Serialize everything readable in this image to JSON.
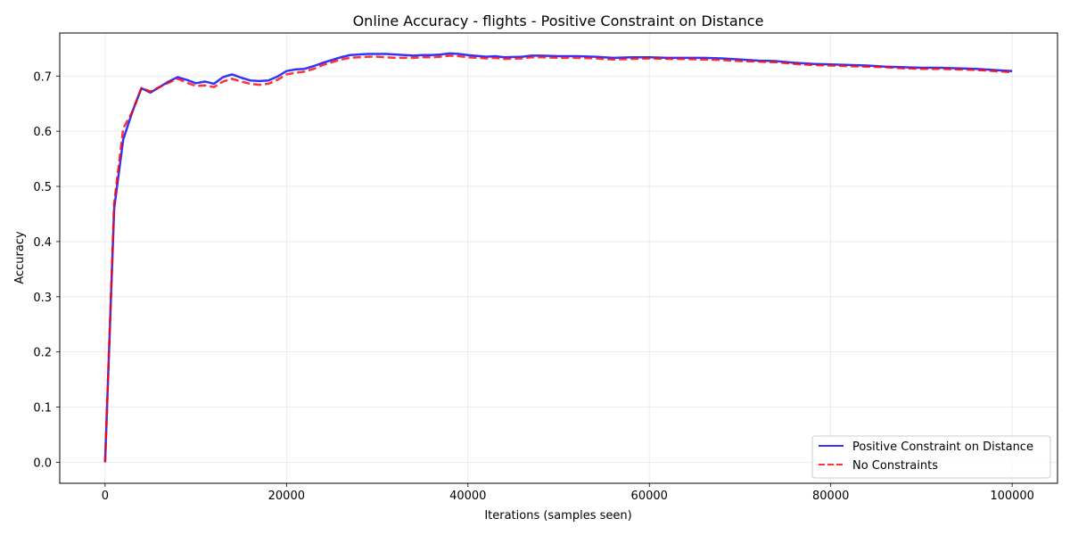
{
  "chart_data": {
    "type": "line",
    "title": "Online Accuracy - flights - Positive Constraint on Distance",
    "xlabel": "Iterations (samples seen)",
    "ylabel": "Accuracy",
    "xlim": [
      -5000,
      105000
    ],
    "ylim": [
      -0.038,
      0.778
    ],
    "x_ticks": [
      0,
      20000,
      40000,
      60000,
      80000,
      100000
    ],
    "x_tick_labels": [
      "0",
      "20000",
      "40000",
      "60000",
      "80000",
      "100000"
    ],
    "y_ticks": [
      0.0,
      0.1,
      0.2,
      0.3,
      0.4,
      0.5,
      0.6,
      0.7
    ],
    "y_tick_labels": [
      "0.0",
      "0.1",
      "0.2",
      "0.3",
      "0.4",
      "0.5",
      "0.6",
      "0.7"
    ],
    "grid": true,
    "legend_position": "bottom-right",
    "series": [
      {
        "name": "Positive Constraint on Distance",
        "color": "#0000ff",
        "style": "solid",
        "points": [
          [
            0,
            0.0
          ],
          [
            1000,
            0.46
          ],
          [
            2000,
            0.585
          ],
          [
            3000,
            0.635
          ],
          [
            4000,
            0.678
          ],
          [
            5000,
            0.67
          ],
          [
            6000,
            0.68
          ],
          [
            7000,
            0.69
          ],
          [
            8000,
            0.698
          ],
          [
            9000,
            0.693
          ],
          [
            10000,
            0.687
          ],
          [
            11000,
            0.69
          ],
          [
            12000,
            0.686
          ],
          [
            13000,
            0.698
          ],
          [
            14000,
            0.703
          ],
          [
            15000,
            0.697
          ],
          [
            16000,
            0.692
          ],
          [
            17000,
            0.691
          ],
          [
            18000,
            0.692
          ],
          [
            19000,
            0.699
          ],
          [
            20000,
            0.709
          ],
          [
            21000,
            0.712
          ],
          [
            22000,
            0.713
          ],
          [
            23000,
            0.718
          ],
          [
            24000,
            0.724
          ],
          [
            25000,
            0.729
          ],
          [
            26000,
            0.734
          ],
          [
            27000,
            0.738
          ],
          [
            28000,
            0.739
          ],
          [
            29000,
            0.74
          ],
          [
            30000,
            0.74
          ],
          [
            31000,
            0.74
          ],
          [
            32000,
            0.739
          ],
          [
            33000,
            0.738
          ],
          [
            34000,
            0.737
          ],
          [
            35000,
            0.738
          ],
          [
            36000,
            0.738
          ],
          [
            37000,
            0.739
          ],
          [
            38000,
            0.741
          ],
          [
            39000,
            0.74
          ],
          [
            40000,
            0.738
          ],
          [
            42000,
            0.735
          ],
          [
            43000,
            0.736
          ],
          [
            44000,
            0.734
          ],
          [
            46000,
            0.735
          ],
          [
            47000,
            0.737
          ],
          [
            48000,
            0.737
          ],
          [
            50000,
            0.736
          ],
          [
            52000,
            0.736
          ],
          [
            54000,
            0.735
          ],
          [
            56000,
            0.733
          ],
          [
            58000,
            0.734
          ],
          [
            60000,
            0.734
          ],
          [
            62000,
            0.733
          ],
          [
            64000,
            0.733
          ],
          [
            66000,
            0.733
          ],
          [
            68000,
            0.732
          ],
          [
            70000,
            0.73
          ],
          [
            72000,
            0.728
          ],
          [
            74000,
            0.727
          ],
          [
            76000,
            0.724
          ],
          [
            78000,
            0.722
          ],
          [
            80000,
            0.721
          ],
          [
            82000,
            0.72
          ],
          [
            84000,
            0.719
          ],
          [
            86000,
            0.717
          ],
          [
            88000,
            0.716
          ],
          [
            90000,
            0.715
          ],
          [
            92000,
            0.715
          ],
          [
            94000,
            0.714
          ],
          [
            96000,
            0.713
          ],
          [
            98000,
            0.711
          ],
          [
            100000,
            0.709
          ]
        ]
      },
      {
        "name": "No Constraints",
        "color": "#ff0000",
        "style": "dashed",
        "points": [
          [
            0,
            0.0
          ],
          [
            1000,
            0.47
          ],
          [
            2000,
            0.605
          ],
          [
            3000,
            0.635
          ],
          [
            4000,
            0.678
          ],
          [
            5000,
            0.672
          ],
          [
            6000,
            0.68
          ],
          [
            7000,
            0.688
          ],
          [
            8000,
            0.695
          ],
          [
            9000,
            0.688
          ],
          [
            10000,
            0.682
          ],
          [
            11000,
            0.683
          ],
          [
            12000,
            0.68
          ],
          [
            13000,
            0.69
          ],
          [
            14000,
            0.695
          ],
          [
            15000,
            0.69
          ],
          [
            16000,
            0.686
          ],
          [
            17000,
            0.684
          ],
          [
            18000,
            0.686
          ],
          [
            19000,
            0.693
          ],
          [
            20000,
            0.703
          ],
          [
            21000,
            0.706
          ],
          [
            22000,
            0.708
          ],
          [
            23000,
            0.713
          ],
          [
            24000,
            0.72
          ],
          [
            25000,
            0.725
          ],
          [
            26000,
            0.73
          ],
          [
            27000,
            0.733
          ],
          [
            28000,
            0.734
          ],
          [
            29000,
            0.735
          ],
          [
            30000,
            0.735
          ],
          [
            31000,
            0.734
          ],
          [
            32000,
            0.733
          ],
          [
            33000,
            0.733
          ],
          [
            34000,
            0.733
          ],
          [
            35000,
            0.734
          ],
          [
            36000,
            0.734
          ],
          [
            37000,
            0.735
          ],
          [
            38000,
            0.737
          ],
          [
            39000,
            0.736
          ],
          [
            40000,
            0.734
          ],
          [
            42000,
            0.732
          ],
          [
            43000,
            0.733
          ],
          [
            44000,
            0.731
          ],
          [
            46000,
            0.732
          ],
          [
            47000,
            0.734
          ],
          [
            48000,
            0.734
          ],
          [
            50000,
            0.733
          ],
          [
            52000,
            0.733
          ],
          [
            54000,
            0.732
          ],
          [
            56000,
            0.73
          ],
          [
            58000,
            0.731
          ],
          [
            60000,
            0.732
          ],
          [
            62000,
            0.731
          ],
          [
            64000,
            0.731
          ],
          [
            66000,
            0.73
          ],
          [
            68000,
            0.729
          ],
          [
            70000,
            0.727
          ],
          [
            72000,
            0.726
          ],
          [
            74000,
            0.725
          ],
          [
            76000,
            0.722
          ],
          [
            78000,
            0.72
          ],
          [
            80000,
            0.719
          ],
          [
            82000,
            0.718
          ],
          [
            84000,
            0.717
          ],
          [
            86000,
            0.716
          ],
          [
            88000,
            0.714
          ],
          [
            90000,
            0.713
          ],
          [
            92000,
            0.713
          ],
          [
            94000,
            0.712
          ],
          [
            96000,
            0.711
          ],
          [
            98000,
            0.709
          ],
          [
            100000,
            0.707
          ]
        ]
      }
    ]
  }
}
